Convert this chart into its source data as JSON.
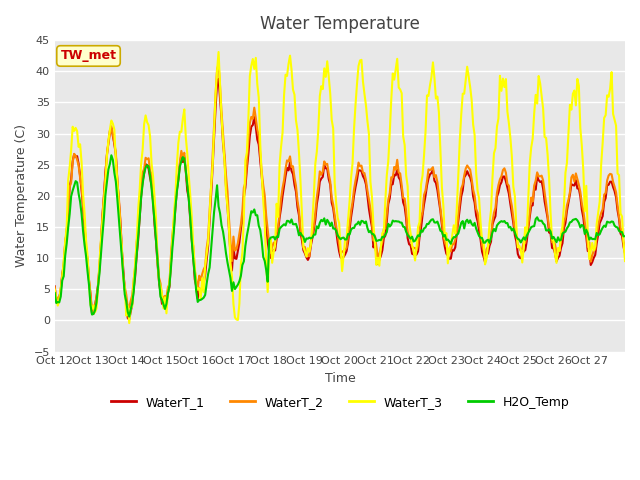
{
  "title": "Water Temperature",
  "xlabel": "Time",
  "ylabel": "Water Temperature (C)",
  "ylim": [
    -5,
    45
  ],
  "yticks": [
    -5,
    0,
    5,
    10,
    15,
    20,
    25,
    30,
    35,
    40,
    45
  ],
  "xtick_labels": [
    "Oct 12",
    "Oct 13",
    "Oct 14",
    "Oct 15",
    "Oct 16",
    "Oct 17",
    "Oct 18",
    "Oct 19",
    "Oct 20",
    "Oct 21",
    "Oct 22",
    "Oct 23",
    "Oct 24",
    "Oct 25",
    "Oct 26",
    "Oct 27"
  ],
  "colors": {
    "WaterT_1": "#cc0000",
    "WaterT_2": "#ff8800",
    "WaterT_3": "#ffff00",
    "H2O_Temp": "#00cc00"
  },
  "annotation_label": "TW_met",
  "annotation_color": "#cc0000",
  "annotation_bg": "#ffffcc",
  "annotation_edge": "#ccaa00",
  "plot_bg": "#e8e8e8",
  "line_width": 1.5,
  "n_days": 16,
  "pts_per_day": 24
}
